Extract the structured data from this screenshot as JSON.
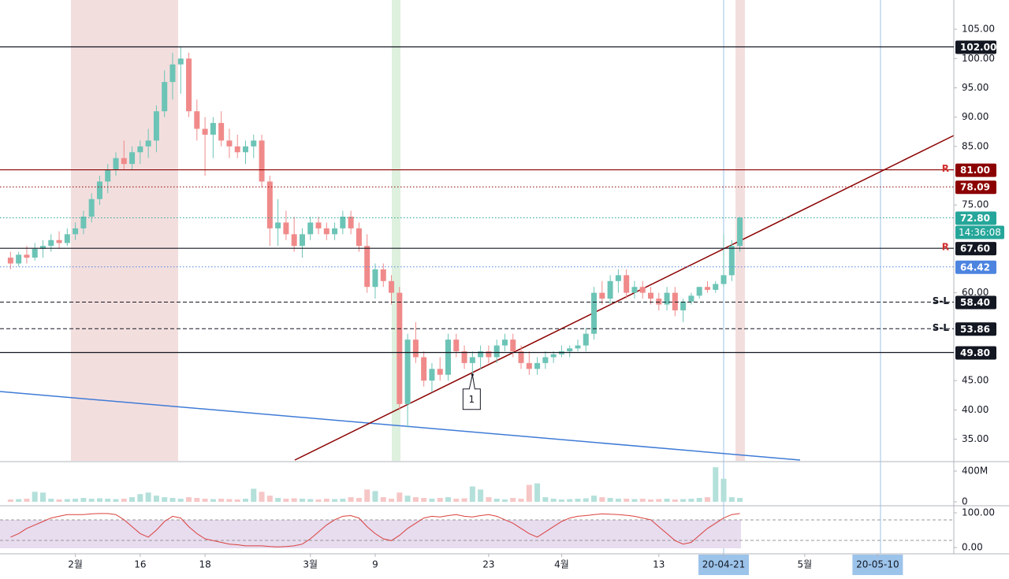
{
  "chart_data": {
    "type": "candlestick",
    "open": [
      66,
      65,
      66.5,
      66,
      67.5,
      68,
      69,
      68.5,
      70,
      71,
      73,
      76,
      79,
      81,
      83,
      82,
      84,
      85,
      86,
      91,
      96,
      99,
      100,
      91,
      88,
      87,
      89,
      86,
      85,
      84,
      85,
      86,
      79,
      71,
      72,
      70,
      68,
      70,
      72,
      71,
      70,
      71,
      73,
      71,
      68,
      61,
      64,
      62,
      60,
      41,
      52,
      49,
      45,
      47,
      46,
      52,
      50,
      48,
      49,
      50,
      49,
      51,
      52,
      50,
      48,
      47,
      48,
      49,
      49.5,
      50,
      50.5,
      51,
      53,
      60,
      59,
      62,
      63,
      60,
      61,
      60,
      59,
      58,
      60,
      57,
      58.5,
      59.5,
      61,
      60.5,
      61.5,
      63,
      68
    ],
    "high": [
      67,
      67,
      68,
      68.5,
      69,
      70,
      70.5,
      71,
      72,
      74,
      77,
      80,
      82,
      84,
      86,
      85,
      86,
      88,
      92,
      98,
      101,
      102,
      101,
      93,
      90,
      90,
      91,
      88,
      87,
      86,
      87,
      87,
      80,
      76,
      74,
      73,
      71,
      73,
      73,
      72,
      72,
      74,
      74,
      72,
      70,
      65,
      65,
      63,
      61,
      53,
      55,
      50,
      48,
      49,
      53,
      53,
      51,
      50,
      51,
      51,
      52,
      53,
      53,
      51,
      50,
      49,
      50,
      50,
      51,
      51,
      52,
      54,
      61,
      62,
      63,
      64,
      64,
      62,
      62,
      61,
      60,
      61,
      61,
      59,
      60,
      61,
      62,
      62,
      70,
      69,
      73
    ],
    "low": [
      64,
      64.5,
      65,
      65.5,
      66,
      67,
      67.5,
      68,
      69,
      70,
      72,
      75,
      77,
      80,
      81,
      81,
      82,
      83,
      84,
      90,
      93,
      94,
      90,
      86,
      80,
      83,
      85,
      83,
      83,
      82,
      83,
      78,
      68,
      68,
      69,
      67,
      66,
      69,
      70,
      69,
      69,
      70,
      70,
      67,
      60,
      59,
      61,
      58,
      40,
      37,
      48,
      44,
      43,
      45,
      45,
      49,
      47,
      46,
      47,
      48,
      48,
      50,
      49,
      47,
      46,
      46,
      47,
      48,
      49,
      49,
      50,
      50,
      52,
      58,
      58,
      60,
      59,
      59,
      59,
      58,
      57,
      57,
      56,
      55,
      58,
      59,
      60,
      60,
      61,
      62,
      67
    ],
    "close": [
      65,
      66.5,
      66,
      67.5,
      68,
      69,
      68.5,
      70,
      71,
      73,
      76,
      79,
      81,
      83,
      82,
      84,
      85,
      86,
      91,
      96,
      99,
      100,
      91,
      88,
      87,
      89,
      86,
      85,
      84,
      85,
      86,
      79,
      71,
      72,
      70,
      68,
      70,
      72,
      71,
      70,
      71,
      73,
      71,
      68,
      61,
      64,
      62,
      60,
      41,
      52,
      49,
      45,
      47,
      46,
      52,
      50,
      48,
      49,
      50,
      49,
      51,
      52,
      50,
      48,
      47,
      48,
      49,
      49.5,
      50,
      50.5,
      51,
      53,
      60,
      59,
      62,
      63,
      60,
      61,
      60,
      59,
      58,
      60,
      57,
      58.5,
      59.5,
      61,
      60.5,
      61.5,
      63,
      68,
      72.8
    ],
    "up_color": "#6cc4b6",
    "down_color": "#f08a8a",
    "xlim": [
      -1.3,
      116.4
    ],
    "xticks": [
      {
        "value": 8,
        "label": "2월"
      },
      16,
      {
        "value": 24,
        "label": "18"
      },
      {
        "value": 37,
        "label": "3월"
      },
      {
        "value": 45,
        "label": "9"
      },
      {
        "value": 59,
        "label": "23"
      },
      {
        "value": 68,
        "label": "4월"
      },
      {
        "value": 80,
        "label": "13"
      },
      {
        "value": 88,
        "label": "20-04-21"
      },
      {
        "value": 98,
        "label": "5월"
      },
      {
        "value": 107,
        "label": "20-05-10"
      }
    ],
    "ylim": [
      31.3,
      110
    ],
    "yticks": [
      {
        "value": 105,
        "label": "105.00"
      },
      {
        "value": 100,
        "label": "100.00"
      },
      {
        "value": 95,
        "label": "95.00"
      },
      {
        "value": 90,
        "label": "90.00"
      },
      {
        "value": 85,
        "label": "85.00"
      },
      {
        "value": 75,
        "label": "75.00"
      },
      {
        "value": 60,
        "label": "60.00"
      },
      {
        "value": 45,
        "label": "45.00"
      },
      {
        "value": 40,
        "label": "40.00"
      },
      {
        "value": 35,
        "label": "35.00"
      }
    ],
    "levels": [
      {
        "value": 102,
        "label": "102.00",
        "color": "#131722",
        "style": "solid"
      },
      {
        "value": 81,
        "label": "81.00",
        "color": "#8b0000",
        "style": "solid",
        "tag": "R"
      },
      {
        "value": 78.09,
        "label": "78.09",
        "color": "#8b0000",
        "style": "dotted"
      },
      {
        "value": 72.8,
        "label": "72.80",
        "color": "#26a69a",
        "style": "dotted",
        "extra": "14:36:08"
      },
      {
        "value": 67.6,
        "label": "67.60",
        "color": "#131722",
        "style": "solid",
        "tag": "R"
      },
      {
        "value": 64.42,
        "label": "64.42",
        "color": "#4c84e0",
        "style": "dotted"
      },
      {
        "value": 58.4,
        "label": "58.40",
        "color": "#131722",
        "style": "dashed",
        "tag": "S-L"
      },
      {
        "value": 53.86,
        "label": "53.86",
        "color": "#131722",
        "style": "dashed",
        "tag": "S-L"
      },
      {
        "value": 49.8,
        "label": "49.80",
        "color": "#131722",
        "style": "solid"
      }
    ],
    "annotation": {
      "x": 57,
      "y": 46,
      "text": "1"
    },
    "volume": {
      "values": [
        30,
        35,
        40,
        130,
        120,
        40,
        30,
        35,
        40,
        50,
        40,
        45,
        40,
        35,
        40,
        60,
        100,
        120,
        80,
        60,
        50,
        40,
        60,
        50,
        40,
        35,
        40,
        35,
        30,
        40,
        170,
        130,
        80,
        50,
        40,
        45,
        40,
        35,
        30,
        40,
        35,
        40,
        60,
        50,
        160,
        140,
        60,
        40,
        120,
        80,
        60,
        50,
        40,
        50,
        60,
        40,
        45,
        200,
        160,
        60,
        40,
        30,
        50,
        40,
        220,
        240,
        60,
        40,
        30,
        35,
        40,
        45,
        80,
        60,
        50,
        40,
        40,
        35,
        40,
        30,
        35,
        40,
        30,
        35,
        40,
        50,
        60,
        450,
        300,
        60,
        50
      ],
      "ylim": [
        0,
        482
      ],
      "yticks": [
        {
          "value": 400,
          "label": "400M"
        },
        0
      ]
    },
    "oscillator": {
      "values": [
        30,
        40,
        55,
        65,
        75,
        85,
        90,
        95,
        95,
        95,
        97,
        98,
        98,
        95,
        80,
        60,
        40,
        30,
        50,
        75,
        90,
        85,
        60,
        40,
        25,
        20,
        15,
        10,
        8,
        5,
        5,
        5,
        3,
        2,
        3,
        5,
        10,
        25,
        45,
        65,
        80,
        90,
        92,
        85,
        60,
        40,
        25,
        20,
        35,
        55,
        70,
        85,
        90,
        88,
        92,
        95,
        90,
        88,
        92,
        95,
        90,
        80,
        70,
        55,
        40,
        30,
        45,
        60,
        75,
        85,
        90,
        92,
        95,
        97,
        96,
        95,
        93,
        90,
        85,
        80,
        60,
        40,
        20,
        10,
        15,
        35,
        55,
        70,
        85,
        95,
        98
      ],
      "ylim": [
        -18,
        113.6
      ],
      "yticks": [
        {
          "value": 100,
          "label": "100.00"
        },
        {
          "value": 0,
          "label": "0.00"
        }
      ]
    }
  }
}
